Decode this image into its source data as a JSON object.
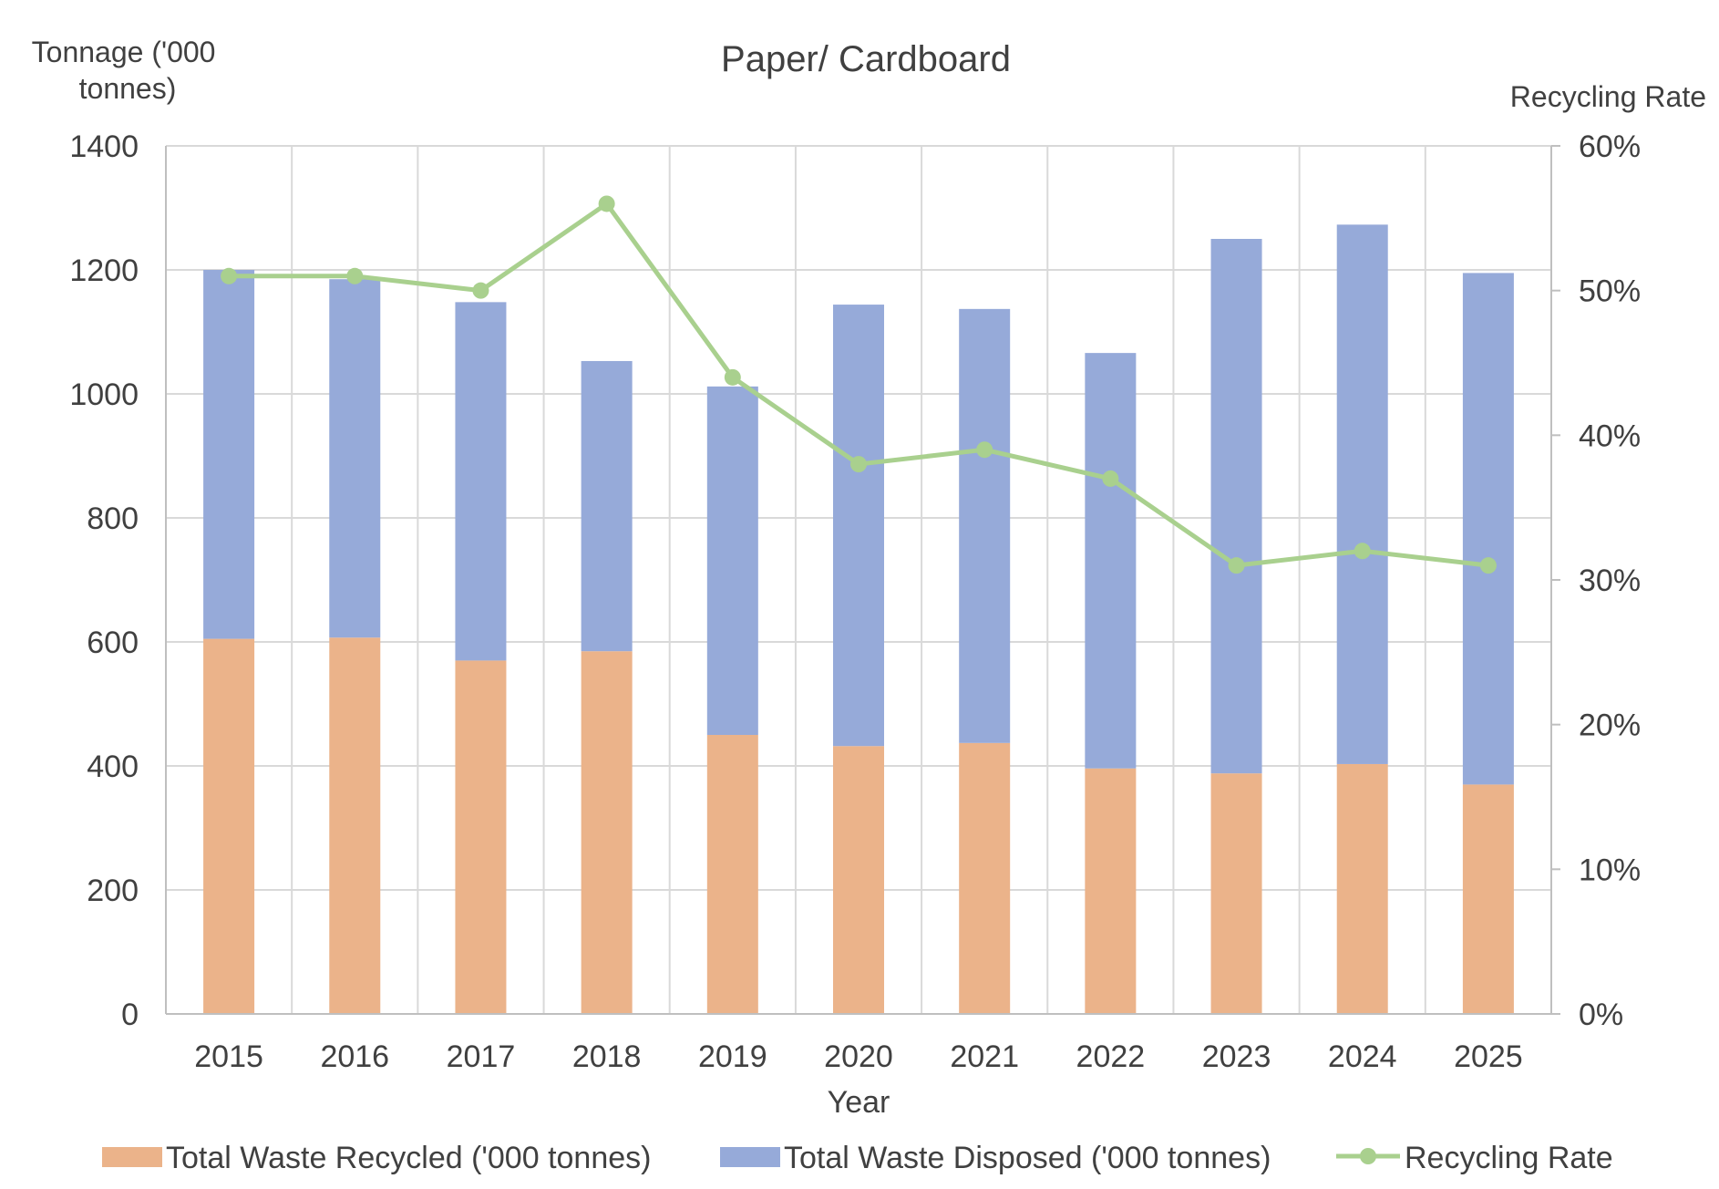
{
  "chart_data": {
    "type": "bar",
    "stacked": true,
    "title": "Paper/ Cardboard",
    "xlabel": "Year",
    "ylabel": "Tonnage ('000 tonnes)",
    "ylabel_lines": [
      "Tonnage ('000",
      "tonnes)"
    ],
    "y2label": "Recycling Rate",
    "categories": [
      "2015",
      "2016",
      "2017",
      "2018",
      "2019",
      "2020",
      "2021",
      "2022",
      "2023",
      "2024",
      "2025"
    ],
    "ylim": [
      0,
      1400
    ],
    "yticks": [
      0,
      200,
      400,
      600,
      800,
      1000,
      1200,
      1400
    ],
    "y2lim": [
      0,
      0.6
    ],
    "y2ticks": [
      "0%",
      "10%",
      "20%",
      "30%",
      "40%",
      "50%",
      "60%"
    ],
    "grid": true,
    "legend_position": "bottom",
    "series": [
      {
        "name": "Total Waste Recycled ('000 tonnes)",
        "type": "bar",
        "axis": "left",
        "color": "#EBB38A",
        "values": [
          605,
          607,
          570,
          585,
          450,
          432,
          437,
          396,
          388,
          403,
          370
        ]
      },
      {
        "name": "Total Waste Disposed ('000 tonnes)",
        "type": "bar",
        "axis": "left",
        "color": "#96AAD9",
        "values": [
          595,
          578,
          578,
          468,
          562,
          712,
          700,
          670,
          862,
          870,
          825
        ]
      },
      {
        "name": "Recycling Rate",
        "type": "line",
        "axis": "right",
        "color": "#A9D08E",
        "values": [
          0.51,
          0.51,
          0.5,
          0.56,
          0.44,
          0.38,
          0.39,
          0.37,
          0.31,
          0.32,
          0.31
        ]
      }
    ]
  }
}
